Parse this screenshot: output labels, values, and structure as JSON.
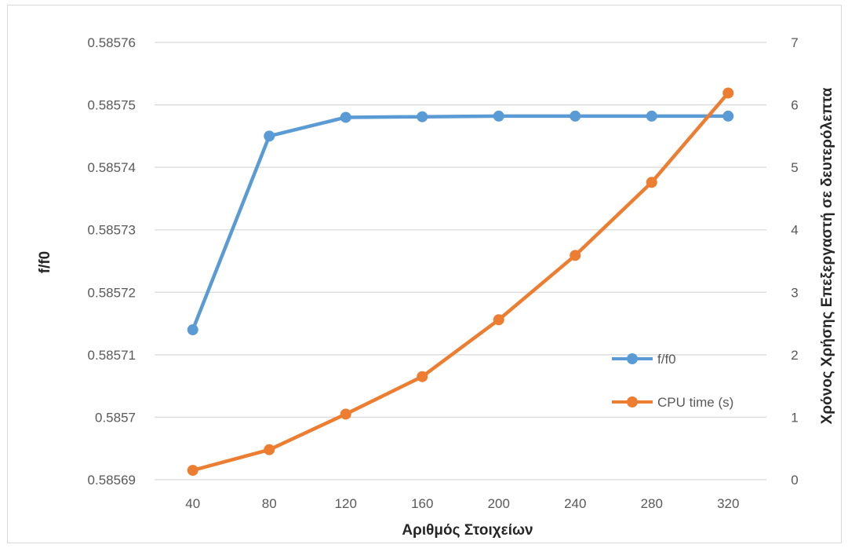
{
  "chart_data": {
    "type": "line",
    "categories": [
      "40",
      "80",
      "120",
      "160",
      "200",
      "240",
      "280",
      "320"
    ],
    "xlabel": "Αριθμός Στοιχείων",
    "ylabel": "f/f0",
    "ylabel_right": "Χρόνος Χρήσης Επεξεργαστή σε δευτερόλεπτα",
    "ylim": [
      0.58569,
      0.58576
    ],
    "yticks": [
      "0.58569",
      "0.5857",
      "0.58571",
      "0.58572",
      "0.58573",
      "0.58574",
      "0.58575",
      "0.58576"
    ],
    "ylim_right": [
      0,
      7
    ],
    "yticks_right": [
      "0",
      "1",
      "2",
      "3",
      "4",
      "5",
      "6",
      "7"
    ],
    "grid": true,
    "legend_position": "right",
    "series": [
      {
        "name": "f/f0",
        "axis": "left",
        "color": "#5b9bd5",
        "values": [
          0.585714,
          0.585745,
          0.585748,
          0.5857481,
          0.5857482,
          0.5857482,
          0.5857482,
          0.5857482
        ]
      },
      {
        "name": "CPU time (s)",
        "axis": "right",
        "color": "#ed7d31",
        "values": [
          0.15,
          0.48,
          1.05,
          1.65,
          2.56,
          3.59,
          4.76,
          6.19
        ]
      }
    ]
  }
}
